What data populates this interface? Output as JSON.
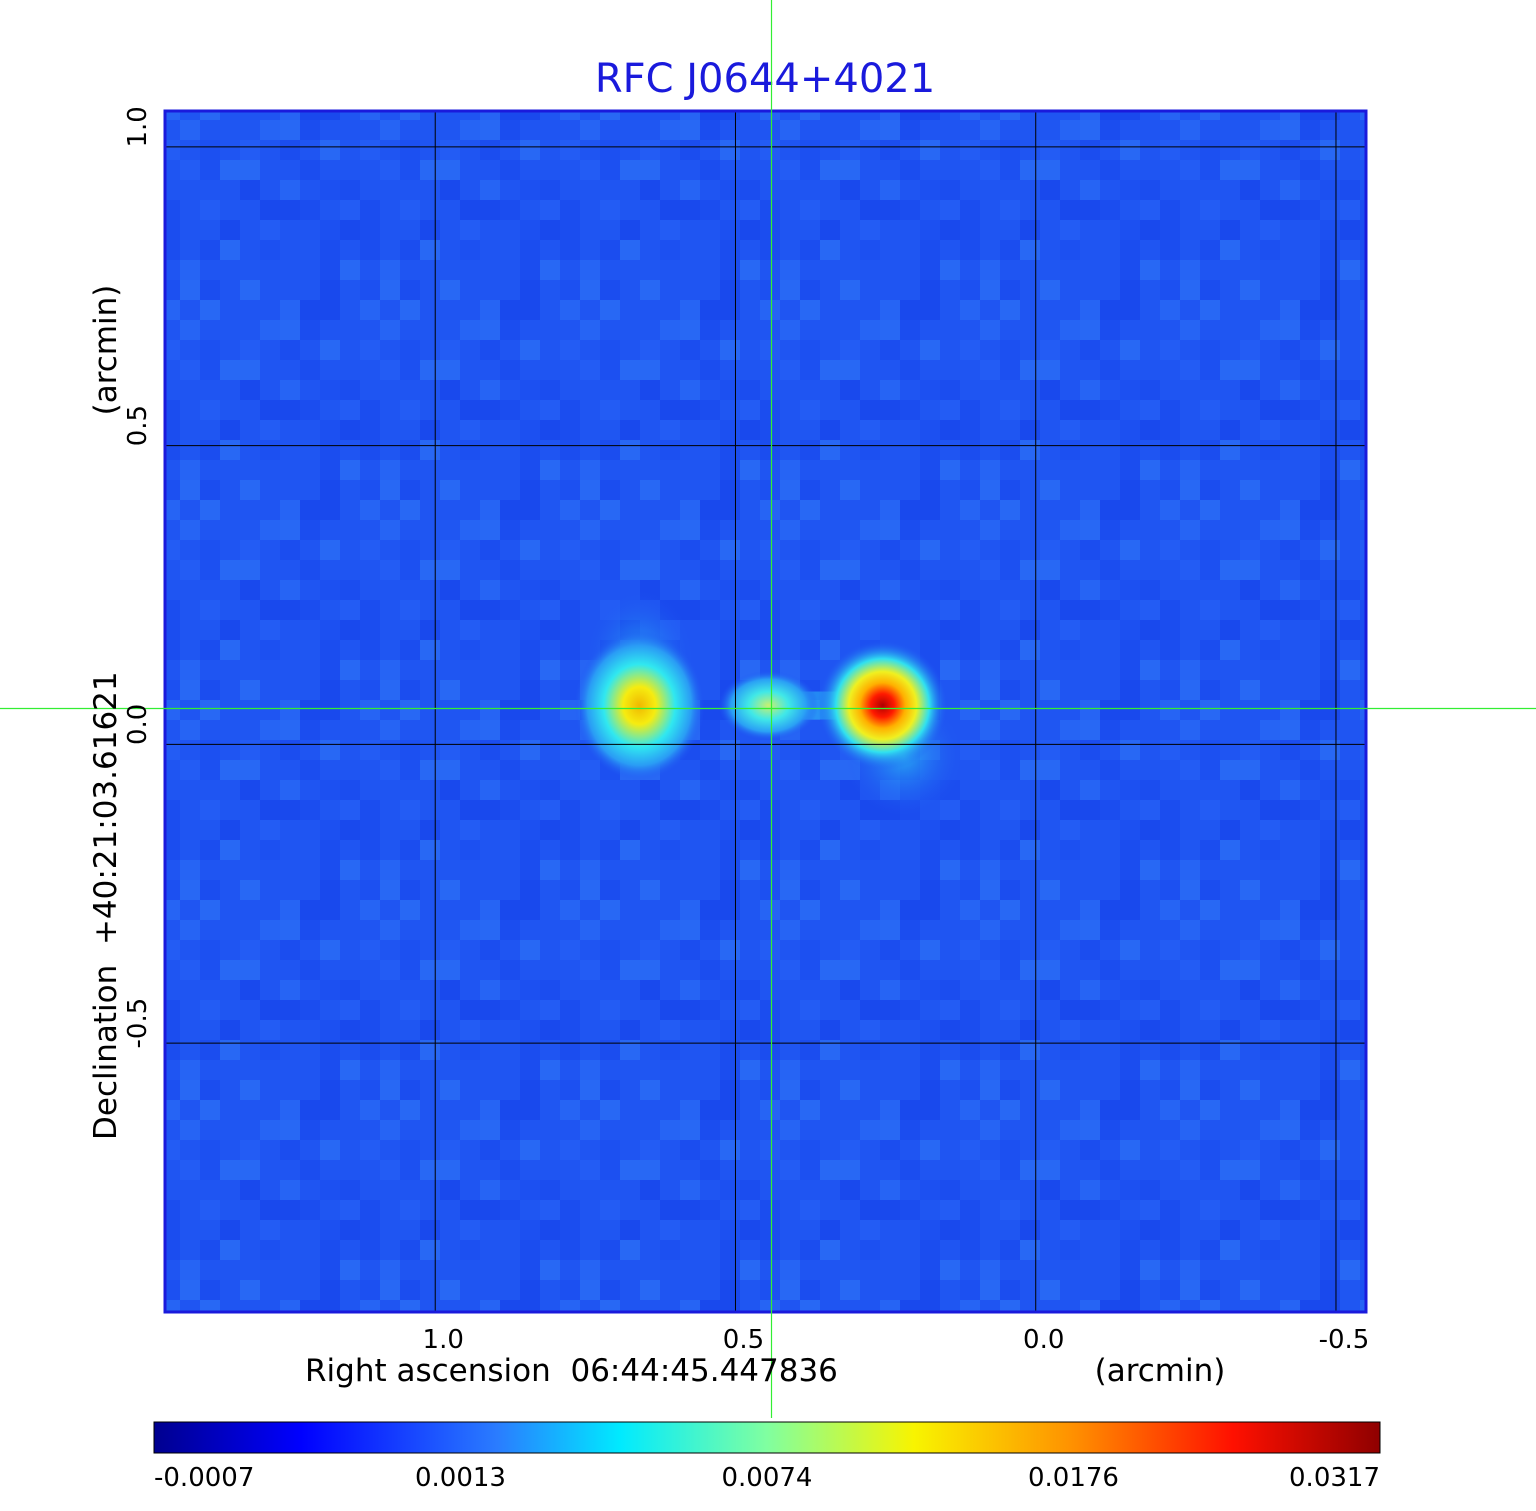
{
  "chart_data": {
    "type": "heatmap",
    "title": "RFC J0644+4021",
    "xlabel": "Right ascension  06:44:45.447836",
    "xunit": "(arcmin)",
    "ylabel": "Declination  +40:21:03.61621",
    "yunit": "(arcmin)",
    "xlim": [
      1.45,
      -0.55
    ],
    "ylim": [
      -0.95,
      1.06
    ],
    "x_ticks": [
      {
        "value": 1.0,
        "label": "1.0"
      },
      {
        "value": 0.5,
        "label": "0.5"
      },
      {
        "value": 0.0,
        "label": "0.0"
      },
      {
        "value": -0.5,
        "label": "-0.5"
      }
    ],
    "y_ticks": [
      {
        "value": 1.0,
        "label": "1.0"
      },
      {
        "value": 0.5,
        "label": "0.5"
      },
      {
        "value": 0.0,
        "label": "0.0"
      },
      {
        "value": -0.5,
        "label": "-0.5"
      }
    ],
    "grid": true,
    "crosshair": {
      "x": 0.44,
      "y": 0.06
    },
    "colormap": "jet",
    "colorbar_ticks": [
      "-0.0007",
      "0.0013",
      "0.0074",
      "0.0176",
      "0.0317"
    ],
    "sources": [
      {
        "x": 0.66,
        "y": 0.065,
        "peak": 0.016
      },
      {
        "x": 0.445,
        "y": 0.065,
        "peak": 0.006
      },
      {
        "x": 0.255,
        "y": 0.065,
        "peak": 0.0317
      }
    ],
    "colors": {
      "title": "#1a1adc",
      "frame": "#1a1adc",
      "crosshair": "#33ee33",
      "grid": "#000000"
    }
  }
}
